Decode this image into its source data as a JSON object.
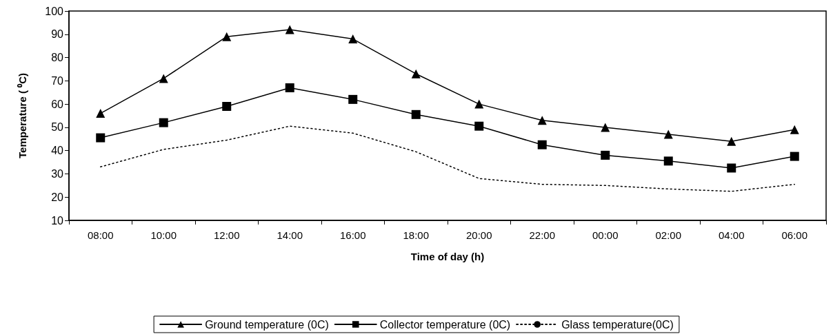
{
  "chart_data": {
    "type": "line",
    "xlabel": "Time of day (h)",
    "ylabel": "Temperature ( ⁰C)",
    "categories": [
      "08:00",
      "10:00",
      "12:00",
      "14:00",
      "16:00",
      "18:00",
      "20:00",
      "22:00",
      "00:00",
      "02:00",
      "04:00",
      "06:00"
    ],
    "ylim": [
      10,
      100
    ],
    "yticks": [
      10,
      20,
      30,
      40,
      50,
      60,
      70,
      80,
      90,
      100
    ],
    "grid": false,
    "legend": "bottom",
    "series": [
      {
        "name": "Ground temperature (0C)",
        "color": "#000000",
        "marker": "triangle",
        "line_style": "solid",
        "values": [
          56,
          71,
          89,
          92,
          88,
          73,
          60,
          53,
          50,
          47,
          44,
          49
        ]
      },
      {
        "name": "Collector temperature (0C)",
        "color": "#000000",
        "marker": "square",
        "line_style": "solid",
        "values": [
          45.5,
          52,
          59,
          67,
          62,
          55.5,
          50.5,
          42.5,
          38,
          35.5,
          32.5,
          37.5
        ]
      },
      {
        "name": "Glass temperature(0C)",
        "color": "#000000",
        "marker": "none",
        "line_style": "dotted",
        "values": [
          33,
          40.5,
          44.5,
          50.5,
          47.5,
          39.5,
          28,
          25.5,
          25,
          23.5,
          22.5,
          25.5
        ]
      }
    ]
  }
}
